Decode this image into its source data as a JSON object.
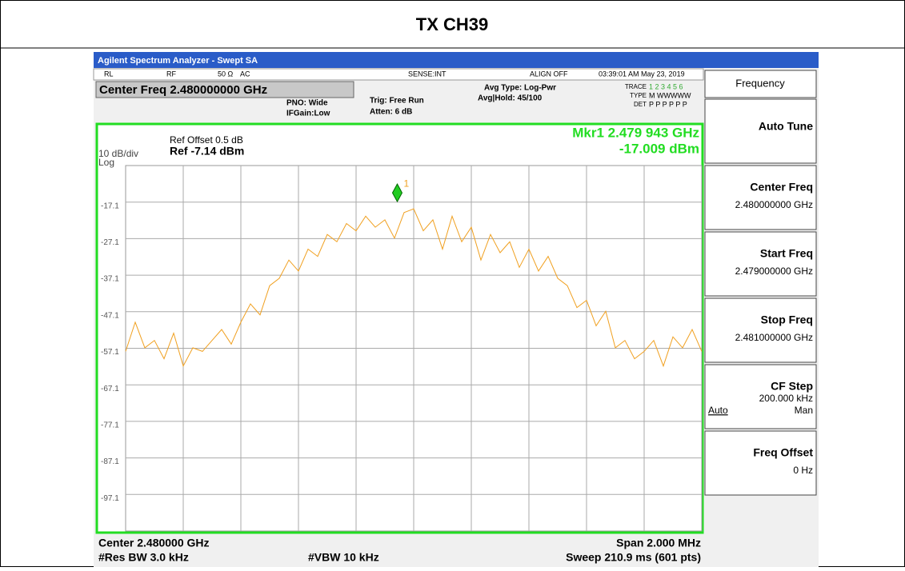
{
  "title": "TX CH39",
  "window_title": "Agilent Spectrum Analyzer - Swept SA",
  "status": [
    "RL",
    "RF",
    "50 Ω",
    "AC",
    "SENSE:INT",
    "ALIGN OFF",
    "03:39:01 AM May 23, 2019"
  ],
  "header": {
    "center": "Center Freq 2.480000000 GHz",
    "pno": "PNO: Wide",
    "ifgain": "IFGain:Low",
    "trig": "Trig: Free Run",
    "atten": "Atten: 6 dB",
    "avg_type": "Avg Type: Log-Pwr",
    "avg_hold": "Avg|Hold: 45/100",
    "trace": "TRACE",
    "trace_nums": "1 2 3 4 5 6",
    "type": "TYPE",
    "type_val": "M WWWWW",
    "det": "DET",
    "det_val": "P P P P P P"
  },
  "chart_data": {
    "type": "line",
    "ref_offset": "Ref Offset 0.5 dB",
    "ref": "Ref -7.14 dBm",
    "scale": "10 dB/div",
    "log": "Log",
    "marker_label": "Mkr1 2.479 943 GHz",
    "marker_value": "-17.009 dBm",
    "marker_id": "1",
    "marker_x": 2.479943,
    "marker_y": -17.009,
    "xlim": [
      2.479,
      2.481
    ],
    "ylim": [
      -107.14,
      -7.14
    ],
    "yticks": [
      {
        "value": -17.14,
        "label": "-17.1"
      },
      {
        "value": -27.14,
        "label": "-27.1"
      },
      {
        "value": -37.14,
        "label": "-37.1"
      },
      {
        "value": -47.14,
        "label": "-47.1"
      },
      {
        "value": -57.14,
        "label": "-57.1"
      },
      {
        "value": -67.14,
        "label": "-67.1"
      },
      {
        "value": -77.14,
        "label": "-77.1"
      },
      {
        "value": -87.14,
        "label": "-87.1"
      },
      {
        "value": -97.14,
        "label": "-97.1"
      }
    ],
    "color": "#f0a020",
    "values": [
      -58,
      -50,
      -57,
      -55,
      -60,
      -53,
      -62,
      -57,
      -58,
      -55,
      -52,
      -56,
      -50,
      -45,
      -48,
      -40,
      -38,
      -33,
      -36,
      -30,
      -32,
      -26,
      -28,
      -23,
      -25,
      -21,
      -24,
      -22,
      -27,
      -20,
      -19,
      -25,
      -22,
      -30,
      -21,
      -28,
      -24,
      -33,
      -26,
      -31,
      -28,
      -35,
      -30,
      -36,
      -32,
      -38,
      -40,
      -46,
      -44,
      -51,
      -47,
      -57,
      -55,
      -60,
      -58,
      -55,
      -62,
      -54,
      -57,
      -52,
      -58
    ],
    "center": "Center 2.480000 GHz",
    "span": "Span 2.000 MHz",
    "rbw": "#Res BW 3.0 kHz",
    "vbw": "#VBW 10 kHz",
    "sweep": "Sweep  210.9 ms (601 pts)"
  },
  "softkeys": [
    {
      "label": "Frequency"
    },
    {
      "label": "Auto Tune"
    },
    {
      "label": "Center Freq",
      "value": "2.480000000 GHz"
    },
    {
      "label": "Start Freq",
      "value": "2.479000000 GHz"
    },
    {
      "label": "Stop Freq",
      "value": "2.481000000 GHz"
    },
    {
      "label": "CF Step",
      "value": "200.000 kHz",
      "opt1": "Auto",
      "opt2": "Man"
    },
    {
      "label": "Freq Offset",
      "value": "0 Hz"
    }
  ]
}
